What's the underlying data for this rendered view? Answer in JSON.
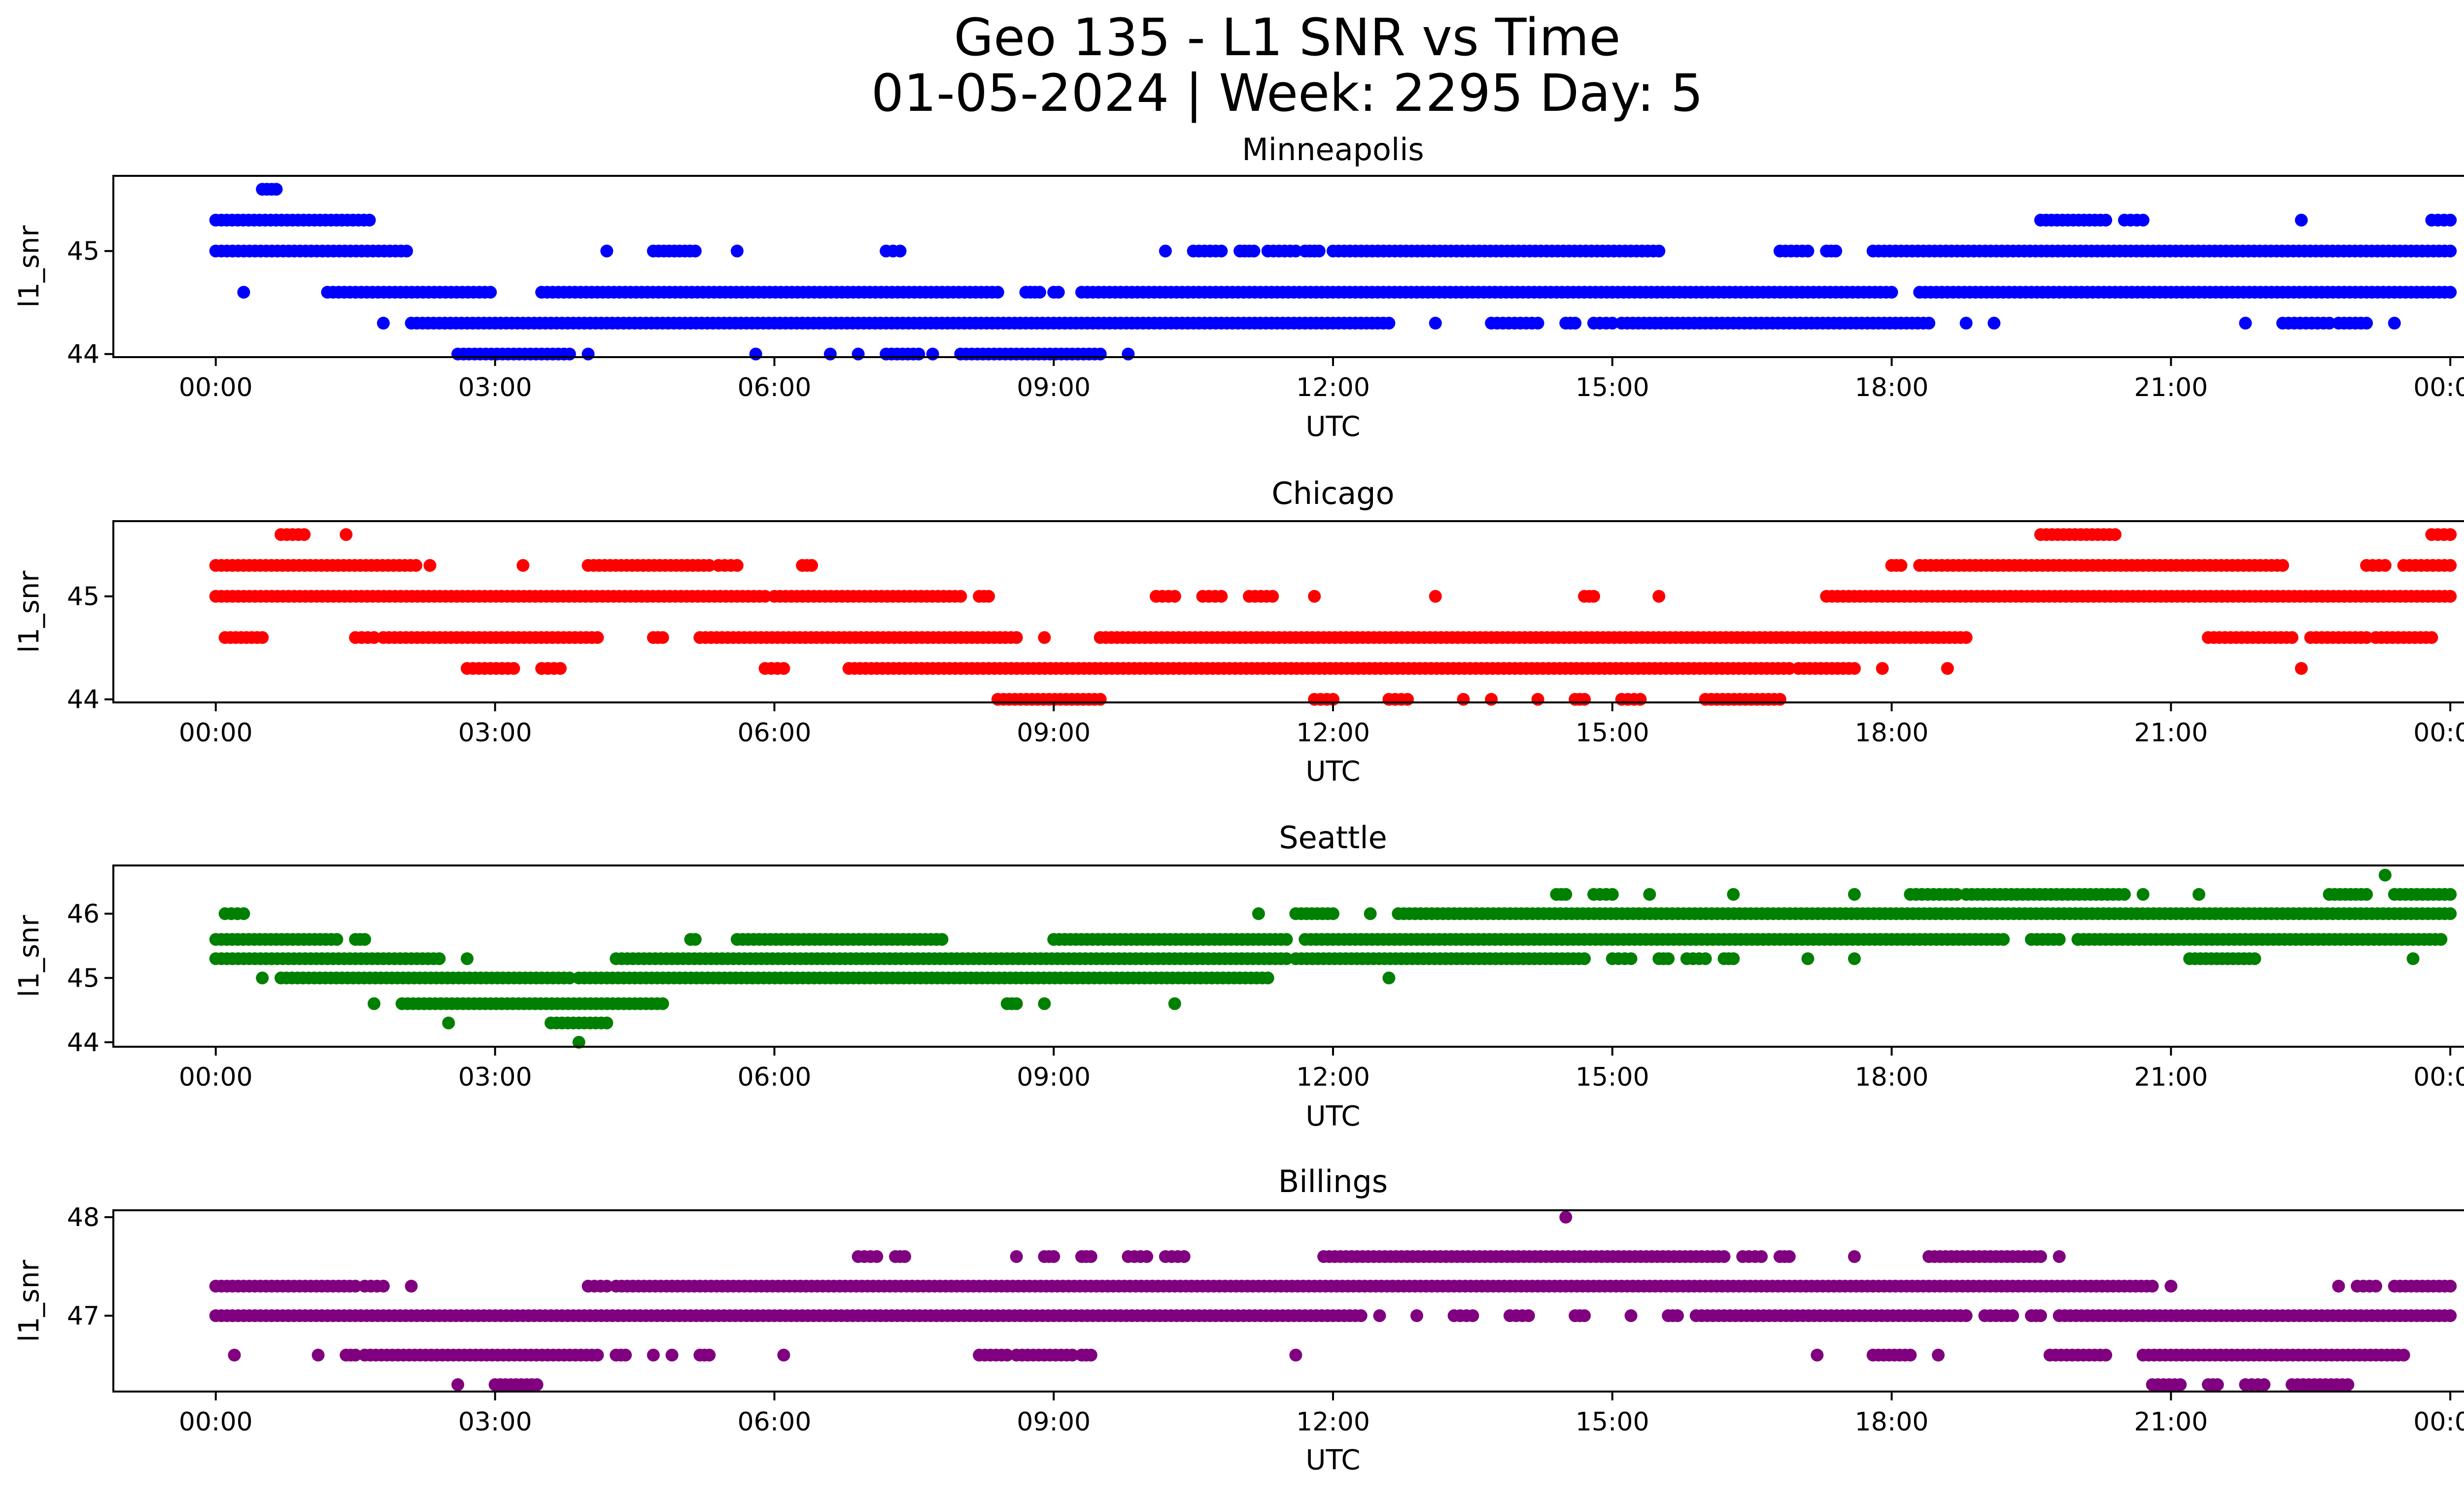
{
  "figure": {
    "title_line1": "Geo 135 - L1 SNR vs Time",
    "title_line2": "01-05-2024 | Week: 2295 Day: 5"
  },
  "chart_data": [
    {
      "type": "scatter",
      "title": "Minneapolis",
      "xlabel": "UTC",
      "ylabel": "l1_snr",
      "color": "#0000ff",
      "x_unit": "hours UTC",
      "xlim": [
        -1.1,
        25.1
      ],
      "xticks": [
        0,
        3,
        6,
        9,
        12,
        15,
        18,
        21,
        24
      ],
      "xticklabels": [
        "00:00",
        "03:00",
        "06:00",
        "09:00",
        "12:00",
        "15:00",
        "18:00",
        "21:00",
        "00:00"
      ],
      "ylim": [
        43.97,
        45.73
      ],
      "yticks": [
        44,
        45
      ],
      "yticklabels": [
        "44",
        "45"
      ],
      "series": [
        {
          "y": 45.6,
          "segments": [
            [
              0.5,
              0.65
            ]
          ]
        },
        {
          "y": 45.3,
          "segments": [
            [
              0.0,
              1.65
            ],
            [
              19.6,
              20.3
            ],
            [
              20.5,
              20.7
            ],
            [
              22.4,
              22.4
            ],
            [
              23.8,
              24.0
            ]
          ]
        },
        {
          "y": 45.0,
          "segments": [
            [
              0.0,
              2.05
            ],
            [
              4.2,
              4.2
            ],
            [
              4.7,
              5.15
            ],
            [
              5.6,
              5.6
            ],
            [
              7.2,
              7.35
            ],
            [
              10.2,
              10.2
            ],
            [
              10.5,
              10.8
            ],
            [
              11.0,
              11.15
            ],
            [
              11.3,
              11.6
            ],
            [
              11.7,
              11.85
            ],
            [
              12.0,
              15.5
            ],
            [
              16.8,
              17.1
            ],
            [
              17.3,
              17.4
            ],
            [
              17.8,
              24.0
            ]
          ]
        },
        {
          "y": 44.6,
          "segments": [
            [
              0.3,
              0.3
            ],
            [
              1.2,
              2.95
            ],
            [
              3.5,
              8.4
            ],
            [
              8.7,
              8.85
            ],
            [
              9.0,
              9.05
            ],
            [
              9.3,
              18.0
            ],
            [
              18.3,
              24.0
            ]
          ]
        },
        {
          "y": 44.3,
          "segments": [
            [
              1.8,
              1.8
            ],
            [
              2.1,
              12.6
            ],
            [
              13.1,
              13.1
            ],
            [
              13.7,
              14.2
            ],
            [
              14.5,
              14.6
            ],
            [
              14.8,
              15.0
            ],
            [
              15.1,
              18.4
            ],
            [
              18.8,
              18.8
            ],
            [
              19.1,
              19.1
            ],
            [
              21.8,
              21.8
            ],
            [
              22.2,
              22.7
            ],
            [
              22.8,
              23.1
            ],
            [
              23.4,
              23.4
            ]
          ]
        },
        {
          "y": 44.0,
          "segments": [
            [
              2.6,
              3.8
            ],
            [
              4.0,
              4.0
            ],
            [
              5.8,
              5.8
            ],
            [
              6.6,
              6.6
            ],
            [
              6.9,
              6.9
            ],
            [
              7.2,
              7.55
            ],
            [
              7.7,
              7.7
            ],
            [
              8.0,
              9.5
            ],
            [
              9.8,
              9.8
            ]
          ]
        }
      ]
    },
    {
      "type": "scatter",
      "title": "Chicago",
      "xlabel": "UTC",
      "ylabel": "l1_snr",
      "color": "#ff0000",
      "x_unit": "hours UTC",
      "xlim": [
        -1.1,
        25.1
      ],
      "xticks": [
        0,
        3,
        6,
        9,
        12,
        15,
        18,
        21,
        24
      ],
      "xticklabels": [
        "00:00",
        "03:00",
        "06:00",
        "09:00",
        "12:00",
        "15:00",
        "18:00",
        "21:00",
        "00:00"
      ],
      "ylim": [
        43.97,
        45.73
      ],
      "yticks": [
        44,
        45
      ],
      "yticklabels": [
        "44",
        "45"
      ],
      "series": [
        {
          "y": 45.6,
          "segments": [
            [
              0.7,
              0.95
            ],
            [
              1.4,
              1.4
            ],
            [
              19.6,
              20.4
            ],
            [
              23.8,
              24.0
            ]
          ]
        },
        {
          "y": 45.3,
          "segments": [
            [
              0.0,
              2.15
            ],
            [
              2.3,
              2.3
            ],
            [
              3.3,
              3.3
            ],
            [
              4.0,
              5.3
            ],
            [
              5.4,
              5.6
            ],
            [
              6.3,
              6.4
            ],
            [
              18.0,
              18.1
            ],
            [
              18.3,
              22.2
            ],
            [
              23.1,
              23.3
            ],
            [
              23.5,
              24.0
            ]
          ]
        },
        {
          "y": 45.0,
          "segments": [
            [
              0.0,
              5.9
            ],
            [
              6.0,
              8.0
            ],
            [
              8.2,
              8.3
            ],
            [
              10.1,
              10.3
            ],
            [
              10.6,
              10.8
            ],
            [
              11.1,
              11.35
            ],
            [
              11.8,
              11.8
            ],
            [
              13.1,
              13.1
            ],
            [
              14.7,
              14.8
            ],
            [
              15.5,
              15.5
            ],
            [
              17.3,
              24.0
            ]
          ]
        },
        {
          "y": 44.6,
          "segments": [
            [
              0.1,
              0.5
            ],
            [
              1.5,
              1.7
            ],
            [
              1.8,
              4.1
            ],
            [
              4.7,
              4.8
            ],
            [
              5.2,
              8.6
            ],
            [
              8.9,
              8.9
            ],
            [
              9.5,
              18.8
            ],
            [
              21.4,
              22.3
            ],
            [
              22.5,
              23.1
            ],
            [
              23.2,
              23.8
            ]
          ]
        },
        {
          "y": 44.3,
          "segments": [
            [
              2.7,
              3.2
            ],
            [
              3.5,
              3.7
            ],
            [
              5.9,
              6.1
            ],
            [
              6.8,
              16.9
            ],
            [
              17.0,
              17.6
            ],
            [
              17.9,
              17.9
            ],
            [
              18.6,
              18.6
            ],
            [
              22.4,
              22.4
            ]
          ]
        },
        {
          "y": 44.0,
          "segments": [
            [
              8.4,
              9.5
            ],
            [
              11.8,
              12.0
            ],
            [
              12.6,
              12.8
            ],
            [
              13.4,
              13.4
            ],
            [
              13.7,
              13.7
            ],
            [
              14.2,
              14.2
            ],
            [
              14.6,
              14.7
            ],
            [
              15.1,
              15.3
            ],
            [
              16.0,
              16.8
            ]
          ]
        }
      ]
    },
    {
      "type": "scatter",
      "title": "Seattle",
      "xlabel": "UTC",
      "ylabel": "l1_snr",
      "color": "#008000",
      "x_unit": "hours UTC",
      "xlim": [
        -1.1,
        25.1
      ],
      "xticks": [
        0,
        3,
        6,
        9,
        12,
        15,
        18,
        21,
        24
      ],
      "xticklabels": [
        "00:00",
        "03:00",
        "06:00",
        "09:00",
        "12:00",
        "15:00",
        "18:00",
        "21:00",
        "00:00"
      ],
      "ylim": [
        43.93,
        46.75
      ],
      "yticks": [
        44,
        45,
        46
      ],
      "yticklabels": [
        "44",
        "45",
        "46"
      ],
      "series": [
        {
          "y": 46.6,
          "segments": [
            [
              23.3,
              23.3
            ]
          ]
        },
        {
          "y": 46.3,
          "segments": [
            [
              14.4,
              14.5
            ],
            [
              14.8,
              15.0
            ],
            [
              15.4,
              15.4
            ],
            [
              16.3,
              16.3
            ],
            [
              17.6,
              17.6
            ],
            [
              18.2,
              18.7
            ],
            [
              18.8,
              20.5
            ],
            [
              20.7,
              20.7
            ],
            [
              21.3,
              21.3
            ],
            [
              22.7,
              23.1
            ],
            [
              23.4,
              24.0
            ]
          ]
        },
        {
          "y": 46.0,
          "segments": [
            [
              0.1,
              0.3
            ],
            [
              11.2,
              11.2
            ],
            [
              11.6,
              12.0
            ],
            [
              12.4,
              12.4
            ],
            [
              12.7,
              24.0
            ]
          ]
        },
        {
          "y": 45.6,
          "segments": [
            [
              0.0,
              1.3
            ],
            [
              1.5,
              1.6
            ],
            [
              5.1,
              5.15
            ],
            [
              5.6,
              7.8
            ],
            [
              9.0,
              11.5
            ],
            [
              11.7,
              19.2
            ],
            [
              19.5,
              19.8
            ],
            [
              20.0,
              23.9
            ]
          ]
        },
        {
          "y": 45.3,
          "segments": [
            [
              0.0,
              2.4
            ],
            [
              2.7,
              2.7
            ],
            [
              4.3,
              11.5
            ],
            [
              11.6,
              14.7
            ],
            [
              15.0,
              15.2
            ],
            [
              15.5,
              15.6
            ],
            [
              15.8,
              16.0
            ],
            [
              16.2,
              16.3
            ],
            [
              17.1,
              17.1
            ],
            [
              17.6,
              17.6
            ],
            [
              21.2,
              21.9
            ],
            [
              23.6,
              23.6
            ]
          ]
        },
        {
          "y": 45.0,
          "segments": [
            [
              0.5,
              0.5
            ],
            [
              0.7,
              3.8
            ],
            [
              3.9,
              11.3
            ],
            [
              12.6,
              12.6
            ]
          ]
        },
        {
          "y": 44.6,
          "segments": [
            [
              1.7,
              1.7
            ],
            [
              2.0,
              4.8
            ],
            [
              8.5,
              8.6
            ],
            [
              8.9,
              8.9
            ],
            [
              10.3,
              10.3
            ]
          ]
        },
        {
          "y": 44.3,
          "segments": [
            [
              2.5,
              2.5
            ],
            [
              3.6,
              4.2
            ]
          ]
        },
        {
          "y": 44.0,
          "segments": [
            [
              3.9,
              3.9
            ]
          ]
        }
      ]
    },
    {
      "type": "scatter",
      "title": "Billings",
      "xlabel": "UTC",
      "ylabel": "l1_snr",
      "color": "#800080",
      "x_unit": "hours UTC",
      "xlim": [
        -1.1,
        25.1
      ],
      "xticks": [
        0,
        3,
        6,
        9,
        12,
        15,
        18,
        21,
        24
      ],
      "xticklabels": [
        "00:00",
        "03:00",
        "06:00",
        "09:00",
        "12:00",
        "15:00",
        "18:00",
        "21:00",
        "00:00"
      ],
      "ylim": [
        46.23,
        48.07
      ],
      "yticks": [
        47,
        48
      ],
      "yticklabels": [
        "47",
        "48"
      ],
      "series": [
        {
          "y": 48.0,
          "segments": [
            [
              14.5,
              14.5
            ]
          ]
        },
        {
          "y": 47.6,
          "segments": [
            [
              6.9,
              7.1
            ],
            [
              7.3,
              7.4
            ],
            [
              8.6,
              8.6
            ],
            [
              8.9,
              9.0
            ],
            [
              9.3,
              9.4
            ],
            [
              9.8,
              10.0
            ],
            [
              10.2,
              10.4
            ],
            [
              11.9,
              16.2
            ],
            [
              16.4,
              16.6
            ],
            [
              16.8,
              16.9
            ],
            [
              17.6,
              17.6
            ],
            [
              18.4,
              19.6
            ],
            [
              19.8,
              19.8
            ]
          ]
        },
        {
          "y": 47.3,
          "segments": [
            [
              0.0,
              1.5
            ],
            [
              1.6,
              1.8
            ],
            [
              2.1,
              2.1
            ],
            [
              4.0,
              4.2
            ],
            [
              4.3,
              20.8
            ],
            [
              21.0,
              21.0
            ],
            [
              22.8,
              22.8
            ],
            [
              23.0,
              23.2
            ],
            [
              23.4,
              24.0
            ]
          ]
        },
        {
          "y": 47.0,
          "segments": [
            [
              0.0,
              12.3
            ],
            [
              12.5,
              12.5
            ],
            [
              12.9,
              12.9
            ],
            [
              13.3,
              13.5
            ],
            [
              13.9,
              14.1
            ],
            [
              14.6,
              14.7
            ],
            [
              15.2,
              15.2
            ],
            [
              15.6,
              15.7
            ],
            [
              15.9,
              18.8
            ],
            [
              19.0,
              19.3
            ],
            [
              19.5,
              19.6
            ],
            [
              19.8,
              24.0
            ]
          ]
        },
        {
          "y": 46.6,
          "segments": [
            [
              0.2,
              0.2
            ],
            [
              1.1,
              1.1
            ],
            [
              1.4,
              1.5
            ],
            [
              1.6,
              4.1
            ],
            [
              4.3,
              4.4
            ],
            [
              4.7,
              4.7
            ],
            [
              4.9,
              4.9
            ],
            [
              5.2,
              5.3
            ],
            [
              6.1,
              6.1
            ],
            [
              8.2,
              8.5
            ],
            [
              8.6,
              9.2
            ],
            [
              9.3,
              9.4
            ],
            [
              11.6,
              11.6
            ],
            [
              17.2,
              17.2
            ],
            [
              17.8,
              18.2
            ],
            [
              18.5,
              18.5
            ],
            [
              19.7,
              20.3
            ],
            [
              20.7,
              23.5
            ]
          ]
        },
        {
          "y": 46.3,
          "segments": [
            [
              2.6,
              2.6
            ],
            [
              3.0,
              3.45
            ],
            [
              20.8,
              21.1
            ],
            [
              21.4,
              21.5
            ],
            [
              21.8,
              22.0
            ],
            [
              22.3,
              22.9
            ]
          ]
        }
      ]
    }
  ]
}
